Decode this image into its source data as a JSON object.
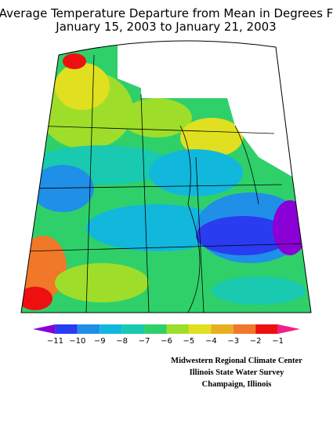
{
  "header": {
    "title_lines": [
      "Average Temperature Departure from Mean in Degrees F",
      "January 15, 2003 to January 21, 2003"
    ]
  },
  "legend": {
    "labels": [
      "−11",
      "−10",
      "−9",
      "−8",
      "−7",
      "−6",
      "−5",
      "−4",
      "−3",
      "−2",
      "−1"
    ],
    "colors": [
      "#8a00d6",
      "#2a3cf0",
      "#1f8fe8",
      "#12b7dc",
      "#19c9b0",
      "#2fd06a",
      "#9ede2a",
      "#e0e020",
      "#e8b020",
      "#f07828",
      "#ee1010",
      "#f0208a"
    ]
  },
  "credits": [
    "Midwestern Regional Climate Center",
    "Illinois State Water Survey",
    "Champaign, Illinois"
  ]
}
